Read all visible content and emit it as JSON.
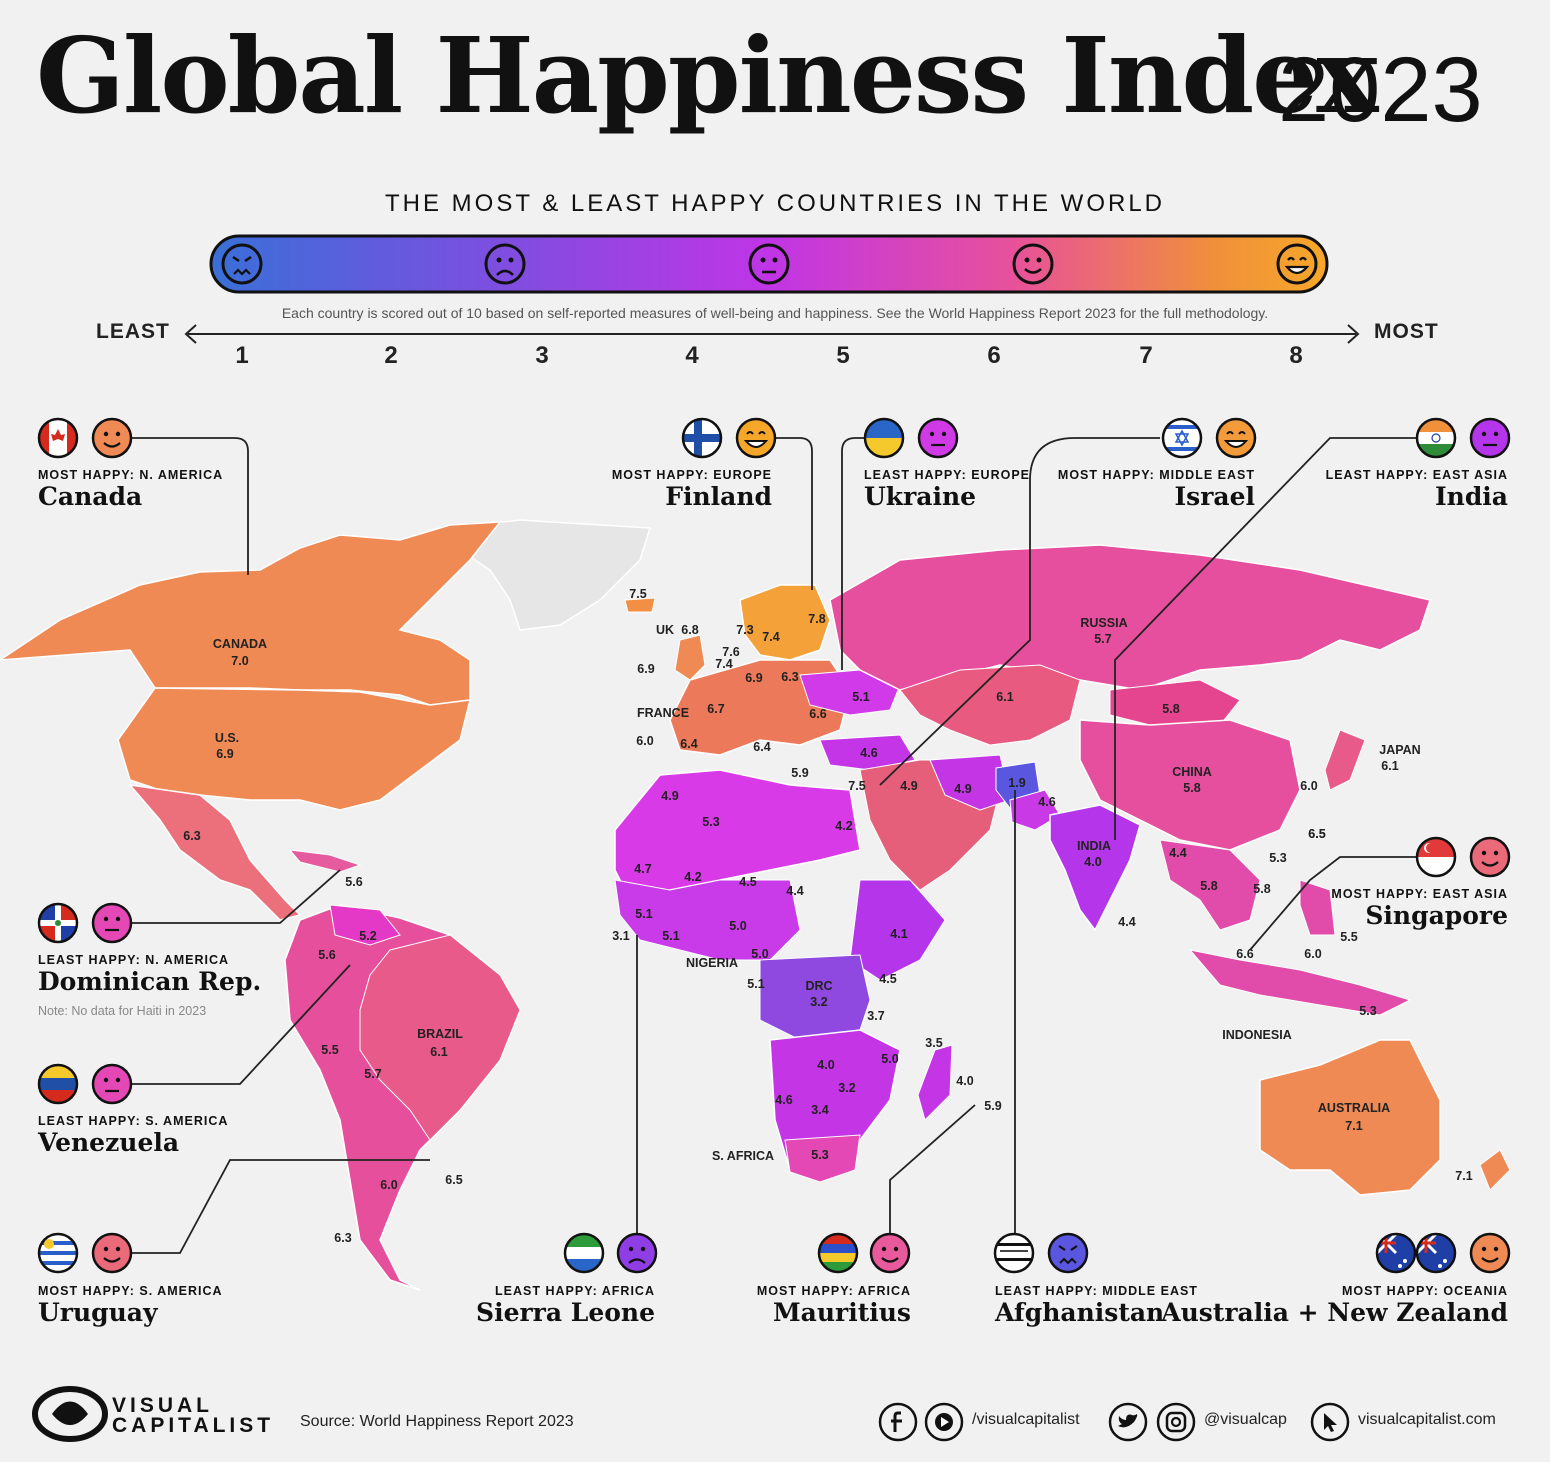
{
  "title": "Global Happiness Index",
  "year": "2023",
  "subtitle": "THE MOST & LEAST HAPPY COUNTRIES IN THE WORLD",
  "scale": {
    "note": "Each country is scored out of 10 based on self-reported measures of well-being and happiness. See the World Happiness Report 2023 for the full methodology.",
    "least_label": "LEAST",
    "most_label": "MOST",
    "ticks": [
      "1",
      "2",
      "3",
      "4",
      "5",
      "6",
      "7",
      "8"
    ],
    "gradient_colors": [
      "#3a6fd8",
      "#7b4fe0",
      "#c035e6",
      "#e8519a",
      "#f0903a",
      "#f6a72a"
    ],
    "faces": [
      "angry-face-icon",
      "frowning-face-icon",
      "neutral-face-icon",
      "slight-smile-icon",
      "grinning-face-icon"
    ]
  },
  "callouts": [
    {
      "key": "canada",
      "subtitle": "MOST HAPPY: N. AMERICA",
      "name": "Canada",
      "flag": "canada-flag-icon",
      "face": "slight-smile-icon",
      "face_color": "#f08a55"
    },
    {
      "key": "finland",
      "subtitle": "MOST HAPPY: EUROPE",
      "name": "Finland",
      "flag": "finland-flag-icon",
      "face": "grinning-face-icon",
      "face_color": "#f6a72a"
    },
    {
      "key": "ukraine",
      "subtitle": "LEAST HAPPY: EUROPE",
      "name": "Ukraine",
      "flag": "ukraine-flag-icon",
      "face": "neutral-face-icon",
      "face_color": "#d03ae6"
    },
    {
      "key": "israel",
      "subtitle": "MOST HAPPY: MIDDLE EAST",
      "name": "Israel",
      "flag": "israel-flag-icon",
      "face": "grinning-face-icon",
      "face_color": "#f39a3a"
    },
    {
      "key": "india",
      "subtitle": "LEAST HAPPY: EAST ASIA",
      "name": "India",
      "flag": "india-flag-icon",
      "face": "neutral-face-icon",
      "face_color": "#b435ea"
    },
    {
      "key": "singapore",
      "subtitle": "MOST HAPPY: EAST ASIA",
      "name": "Singapore",
      "flag": "singapore-flag-icon",
      "face": "slight-smile-icon",
      "face_color": "#ea6a7a"
    },
    {
      "key": "dominican",
      "subtitle": "LEAST HAPPY: N. AMERICA",
      "name": "Dominican Rep.",
      "flag": "dominican-flag-icon",
      "face": "neutral-face-icon",
      "face_color": "#e448b5"
    },
    {
      "key": "venezuela",
      "subtitle": "LEAST HAPPY: S. AMERICA",
      "name": "Venezuela",
      "flag": "venezuela-flag-icon",
      "face": "neutral-face-icon",
      "face_color": "#e448b5"
    },
    {
      "key": "uruguay",
      "subtitle": "MOST HAPPY: S. AMERICA",
      "name": "Uruguay",
      "flag": "uruguay-flag-icon",
      "face": "slight-smile-icon",
      "face_color": "#ea6a7a"
    },
    {
      "key": "sierra",
      "subtitle": "LEAST HAPPY: AFRICA",
      "name": "Sierra Leone",
      "flag": "sierra-leone-flag-icon",
      "face": "frowning-face-icon",
      "face_color": "#8f3ee6"
    },
    {
      "key": "mauritius",
      "subtitle": "MOST HAPPY: AFRICA",
      "name": "Mauritius",
      "flag": "mauritius-flag-icon",
      "face": "slight-smile-icon",
      "face_color": "#e85a9c"
    },
    {
      "key": "afghanistan",
      "subtitle": "LEAST HAPPY: MIDDLE EAST",
      "name": "Afghanistan",
      "flag": "afghanistan-flag-icon",
      "face": "angry-face-icon",
      "face_color": "#5a56df"
    },
    {
      "key": "oceania",
      "subtitle": "MOST HAPPY: OCEANIA",
      "name": "Australia + New Zealand",
      "flag": "australia-nz-flag-icon",
      "face": "slight-smile-icon",
      "face_color": "#f08a55"
    }
  ],
  "haiti_note": "Note: No data for Haiti in 2023",
  "map_labels": [
    {
      "text": "CANADA"
    },
    {
      "text": "7.0"
    },
    {
      "text": "U.S."
    },
    {
      "text": "6.9"
    },
    {
      "text": "6.3"
    },
    {
      "text": "5.6"
    },
    {
      "text": "7.5"
    },
    {
      "text": "UK"
    },
    {
      "text": "6.8"
    },
    {
      "text": "7.3"
    },
    {
      "text": "7.4"
    },
    {
      "text": "7.8"
    },
    {
      "text": "7.6"
    },
    {
      "text": "7.4"
    },
    {
      "text": "6.9"
    },
    {
      "text": "6.9"
    },
    {
      "text": "6.3"
    },
    {
      "text": "FRANCE"
    },
    {
      "text": "6.7"
    },
    {
      "text": "6.6"
    },
    {
      "text": "6.0"
    },
    {
      "text": "6.4"
    },
    {
      "text": "6.4"
    },
    {
      "text": "5.9"
    },
    {
      "text": "5.1"
    },
    {
      "text": "4.6"
    },
    {
      "text": "7.5"
    },
    {
      "text": "4.9"
    },
    {
      "text": "4.9"
    },
    {
      "text": "RUSSIA"
    },
    {
      "text": "5.7"
    },
    {
      "text": "6.1"
    },
    {
      "text": "5.8"
    },
    {
      "text": "1.9"
    },
    {
      "text": "4.6"
    },
    {
      "text": "CHINA"
    },
    {
      "text": "5.8"
    },
    {
      "text": "JAPAN"
    },
    {
      "text": "6.1"
    },
    {
      "text": "6.0"
    },
    {
      "text": "6.5"
    },
    {
      "text": "INDIA"
    },
    {
      "text": "4.0"
    },
    {
      "text": "4.4"
    },
    {
      "text": "5.3"
    },
    {
      "text": "5.8"
    },
    {
      "text": "5.8"
    },
    {
      "text": "4.4"
    },
    {
      "text": "6.5"
    },
    {
      "text": "6.6"
    },
    {
      "text": "6.0"
    },
    {
      "text": "5.5"
    },
    {
      "text": "5.3"
    },
    {
      "text": "INDONESIA"
    },
    {
      "text": "AUSTRALIA"
    },
    {
      "text": "7.1"
    },
    {
      "text": "7.1"
    },
    {
      "text": "4.9"
    },
    {
      "text": "5.3"
    },
    {
      "text": "4.2"
    },
    {
      "text": "4.7"
    },
    {
      "text": "4.2"
    },
    {
      "text": "4.5"
    },
    {
      "text": "4.4"
    },
    {
      "text": "5.1"
    },
    {
      "text": "3.1"
    },
    {
      "text": "5.1"
    },
    {
      "text": "5.0"
    },
    {
      "text": "NIGERIA"
    },
    {
      "text": "5.0"
    },
    {
      "text": "4.1"
    },
    {
      "text": "5.1"
    },
    {
      "text": "DRC"
    },
    {
      "text": "3.2"
    },
    {
      "text": "4.5"
    },
    {
      "text": "3.7"
    },
    {
      "text": "3.5"
    },
    {
      "text": "5.0"
    },
    {
      "text": "4.0"
    },
    {
      "text": "4.0"
    },
    {
      "text": "3.2"
    },
    {
      "text": "4.6"
    },
    {
      "text": "3.4"
    },
    {
      "text": "5.9"
    },
    {
      "text": "S. AFRICA"
    },
    {
      "text": "5.3"
    },
    {
      "text": "5.2"
    },
    {
      "text": "5.6"
    },
    {
      "text": "BRAZIL"
    },
    {
      "text": "6.1"
    },
    {
      "text": "5.5"
    },
    {
      "text": "5.7"
    },
    {
      "text": "6.0"
    },
    {
      "text": "6.5"
    },
    {
      "text": "6.3"
    }
  ],
  "footer": {
    "logo_line1": "VISUAL",
    "logo_line2": "CAPITALIST",
    "source": "Source: World Happiness Report 2023",
    "handle_fb": "/visualcapitalist",
    "handle_tw": "@visualcap",
    "website": "visualcapitalist.com"
  }
}
